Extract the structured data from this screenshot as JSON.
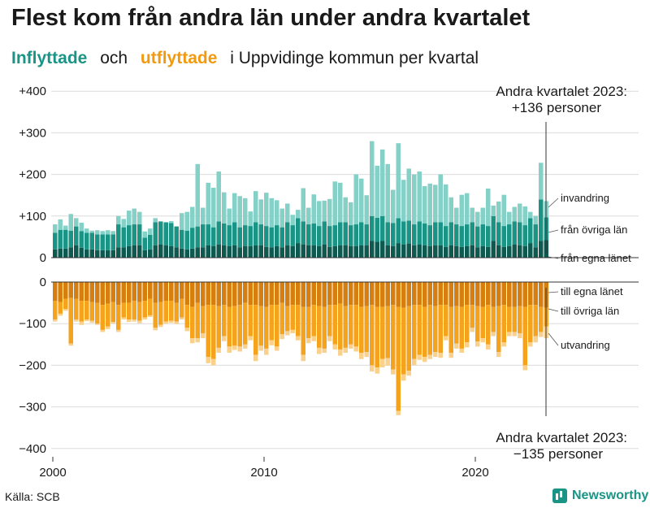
{
  "title": "Flest kom från andra län under andra kvartalet",
  "subtitle": {
    "in_label": "Inflyttade",
    "och": "och",
    "out_label": "utflyttade",
    "rest": "i Uppvidinge  kommun  per  kvartal"
  },
  "source": "Källa: SCB",
  "brand": "Newsworthy",
  "colors": {
    "in_egna": "#0f5a50",
    "in_ovriga": "#1a9485",
    "in_invandring": "#86d1c7",
    "out_egna": "#d67f0e",
    "out_ovriga": "#f5a31c",
    "out_utvandring": "#f9d08c"
  },
  "chart_data": {
    "type": "bar",
    "stacked": true,
    "x_start_year": 2000,
    "periods_per_year": 4,
    "n_periods": 94,
    "ylim": [
      -400,
      400
    ],
    "y_ticks": [
      400,
      300,
      200,
      100,
      0,
      -100,
      -200,
      -300,
      -400
    ],
    "y_tick_labels": [
      "+400",
      "+300",
      "+200",
      "+100",
      "0",
      "−100",
      "−200",
      "−300",
      "−400"
    ],
    "x_ticks": [
      2000,
      2010,
      2020
    ],
    "x_tick_labels": [
      "2000",
      "2010",
      "2020"
    ],
    "inflow_series": [
      {
        "name": "från egna länet",
        "values": [
          20,
          22,
          22,
          25,
          30,
          24,
          20,
          20,
          18,
          18,
          18,
          18,
          25,
          25,
          28,
          30,
          30,
          18,
          20,
          30,
          32,
          30,
          28,
          25,
          22,
          20,
          22,
          25,
          25,
          30,
          28,
          32,
          30,
          28,
          30,
          25,
          28,
          28,
          30,
          30,
          26,
          25,
          28,
          25,
          30,
          28,
          35,
          32,
          30,
          30,
          28,
          32,
          26,
          28,
          30,
          30,
          28,
          28,
          30,
          30,
          40,
          38,
          40,
          30,
          28,
          35,
          32,
          34,
          30,
          32,
          30,
          28,
          30,
          30,
          26,
          30,
          28,
          26,
          28,
          30,
          25,
          28,
          26,
          40,
          30,
          26,
          28,
          32,
          30,
          28,
          35,
          25,
          40,
          42
        ]
      },
      {
        "name": "från övriga län",
        "values": [
          40,
          45,
          45,
          40,
          45,
          40,
          40,
          40,
          38,
          38,
          38,
          38,
          55,
          48,
          50,
          50,
          50,
          30,
          35,
          55,
          55,
          55,
          55,
          50,
          45,
          45,
          50,
          50,
          55,
          50,
          45,
          55,
          52,
          50,
          55,
          48,
          50,
          48,
          55,
          50,
          50,
          48,
          50,
          48,
          55,
          50,
          60,
          55,
          50,
          52,
          48,
          55,
          50,
          50,
          55,
          55,
          50,
          52,
          55,
          50,
          60,
          58,
          60,
          55,
          55,
          60,
          55,
          55,
          50,
          55,
          52,
          50,
          55,
          55,
          50,
          55,
          52,
          50,
          52,
          55,
          50,
          52,
          50,
          60,
          55,
          50,
          52,
          55,
          55,
          50,
          60,
          55,
          100,
          55
        ]
      },
      {
        "name": "invandring",
        "values": [
          20,
          25,
          10,
          40,
          20,
          20,
          10,
          5,
          10,
          8,
          10,
          8,
          20,
          20,
          35,
          38,
          30,
          15,
          15,
          10,
          0,
          0,
          5,
          0,
          40,
          45,
          50,
          150,
          40,
          100,
          95,
          120,
          75,
          40,
          70,
          75,
          65,
          35,
          75,
          60,
          80,
          70,
          60,
          45,
          45,
          25,
          20,
          80,
          40,
          70,
          60,
          50,
          65,
          105,
          95,
          60,
          55,
          120,
          105,
          70,
          180,
          125,
          160,
          140,
          80,
          180,
          100,
          125,
          120,
          120,
          90,
          100,
          90,
          115,
          100,
          60,
          40,
          75,
          75,
          35,
          35,
          40,
          90,
          25,
          50,
          75,
          30,
          35,
          45,
          45,
          15,
          20,
          88,
          39
        ]
      }
    ],
    "outflow_series": [
      {
        "name": "till egna länet",
        "values": [
          45,
          48,
          40,
          38,
          40,
          45,
          45,
          48,
          50,
          55,
          52,
          48,
          55,
          50,
          50,
          45,
          48,
          45,
          40,
          50,
          48,
          45,
          45,
          50,
          40,
          55,
          60,
          50,
          58,
          55,
          55,
          58,
          55,
          60,
          58,
          55,
          50,
          55,
          55,
          58,
          60,
          55,
          55,
          50,
          58,
          55,
          55,
          60,
          60,
          55,
          58,
          60,
          55,
          55,
          52,
          58,
          55,
          55,
          60,
          58,
          55,
          60,
          60,
          58,
          55,
          60,
          62,
          58,
          55,
          55,
          60,
          55,
          58,
          55,
          55,
          60,
          58,
          60,
          55,
          55,
          58,
          60,
          55,
          60,
          58,
          55,
          60,
          60,
          58,
          60,
          55,
          55,
          60,
          62
        ]
      },
      {
        "name": "till övriga län",
        "values": [
          45,
          28,
          25,
          110,
          50,
          50,
          45,
          45,
          50,
          60,
          55,
          48,
          60,
          35,
          40,
          45,
          45,
          40,
          40,
          60,
          55,
          50,
          48,
          45,
          45,
          55,
          75,
          85,
          65,
          125,
          130,
          100,
          75,
          95,
          95,
          100,
          100,
          75,
          120,
          95,
          100,
          85,
          100,
          75,
          60,
          60,
          75,
          115,
          75,
          75,
          100,
          100,
          75,
          95,
          110,
          100,
          95,
          100,
          110,
          110,
          145,
          145,
          125,
          125,
          155,
          250,
          160,
          155,
          130,
          120,
          120,
          120,
          110,
          115,
          75,
          110,
          90,
          100,
          90,
          55,
          85,
          75,
          95,
          60,
          110,
          90,
          60,
          60,
          65,
          140,
          90,
          75,
          60,
          45
        ]
      },
      {
        "name": "utvandring",
        "values": [
          5,
          5,
          4,
          5,
          5,
          8,
          4,
          5,
          3,
          5,
          6,
          4,
          5,
          5,
          6,
          5,
          6,
          5,
          4,
          6,
          5,
          5,
          5,
          6,
          5,
          8,
          12,
          10,
          12,
          15,
          15,
          12,
          12,
          15,
          10,
          12,
          10,
          10,
          15,
          12,
          15,
          12,
          10,
          12,
          10,
          8,
          10,
          15,
          12,
          12,
          15,
          10,
          12,
          12,
          15,
          12,
          10,
          12,
          15,
          12,
          15,
          15,
          20,
          18,
          12,
          10,
          15,
          12,
          15,
          12,
          12,
          10,
          12,
          12,
          10,
          12,
          12,
          10,
          12,
          10,
          12,
          10,
          12,
          10,
          12,
          10,
          10,
          10,
          12,
          12,
          10,
          15,
          12,
          28
        ]
      }
    ],
    "series_labels_in": [
      "invandring",
      "från övriga län",
      "från egna länet"
    ],
    "series_labels_out": [
      "till egna länet",
      "till övriga län",
      "utvandring"
    ],
    "annotation_top": {
      "line1": "Andra kvartalet 2023:",
      "line2": "+136 personer"
    },
    "annotation_bottom": {
      "line1": "Andra kvartalet 2023:",
      "line2": "−135 personer"
    }
  }
}
